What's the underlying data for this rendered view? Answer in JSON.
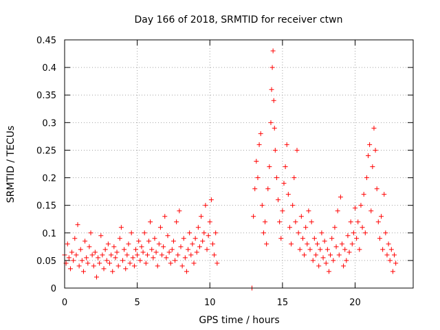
{
  "chart_data": {
    "type": "scatter",
    "title": "Day 166 of 2018, SRMTID for receiver ctwn",
    "xlabel": "GPS time / hours",
    "ylabel": "SRMTID / TECUs",
    "xlim": [
      0,
      24
    ],
    "ylim": [
      0,
      0.45
    ],
    "x_ticks": [
      0,
      5,
      10,
      15,
      20
    ],
    "x_tick_labels": [
      "0",
      "5",
      "10",
      "15",
      "20"
    ],
    "y_ticks": [
      0,
      0.05,
      0.1,
      0.15,
      0.2,
      0.25,
      0.3,
      0.35,
      0.4,
      0.45
    ],
    "y_tick_labels": [
      "0",
      "0.05",
      "0.1",
      "0.15",
      "0.2",
      "0.25",
      "0.3",
      "0.35",
      "0.4",
      "0.45"
    ],
    "grid": true,
    "marker": "plus",
    "color": "#ff0000",
    "series": [
      {
        "name": "SRMTID",
        "points": [
          [
            0.0,
            0.06
          ],
          [
            0.1,
            0.045
          ],
          [
            0.2,
            0.08
          ],
          [
            0.3,
            0.055
          ],
          [
            0.4,
            0.035
          ],
          [
            0.5,
            0.065
          ],
          [
            0.6,
            0.05
          ],
          [
            0.7,
            0.09
          ],
          [
            0.8,
            0.06
          ],
          [
            0.9,
            0.115
          ],
          [
            1.0,
            0.04
          ],
          [
            1.1,
            0.07
          ],
          [
            1.2,
            0.05
          ],
          [
            1.3,
            0.03
          ],
          [
            1.4,
            0.085
          ],
          [
            1.5,
            0.055
          ],
          [
            1.6,
            0.045
          ],
          [
            1.7,
            0.075
          ],
          [
            1.8,
            0.1
          ],
          [
            1.9,
            0.06
          ],
          [
            2.0,
            0.04
          ],
          [
            2.1,
            0.065
          ],
          [
            2.2,
            0.02
          ],
          [
            2.3,
            0.055
          ],
          [
            2.4,
            0.045
          ],
          [
            2.5,
            0.095
          ],
          [
            2.6,
            0.06
          ],
          [
            2.7,
            0.035
          ],
          [
            2.8,
            0.07
          ],
          [
            2.9,
            0.05
          ],
          [
            3.0,
            0.08
          ],
          [
            3.1,
            0.045
          ],
          [
            3.2,
            0.06
          ],
          [
            3.3,
            0.03
          ],
          [
            3.4,
            0.075
          ],
          [
            3.5,
            0.055
          ],
          [
            3.6,
            0.065
          ],
          [
            3.7,
            0.04
          ],
          [
            3.8,
            0.09
          ],
          [
            3.9,
            0.11
          ],
          [
            4.0,
            0.05
          ],
          [
            4.1,
            0.07
          ],
          [
            4.2,
            0.035
          ],
          [
            4.3,
            0.06
          ],
          [
            4.4,
            0.08
          ],
          [
            4.5,
            0.045
          ],
          [
            4.6,
            0.1
          ],
          [
            4.7,
            0.055
          ],
          [
            4.8,
            0.04
          ],
          [
            4.9,
            0.07
          ],
          [
            5.0,
            0.06
          ],
          [
            5.1,
            0.085
          ],
          [
            5.2,
            0.05
          ],
          [
            5.3,
            0.075
          ],
          [
            5.4,
            0.065
          ],
          [
            5.5,
            0.1
          ],
          [
            5.6,
            0.045
          ],
          [
            5.7,
            0.06
          ],
          [
            5.8,
            0.085
          ],
          [
            5.9,
            0.12
          ],
          [
            6.0,
            0.07
          ],
          [
            6.1,
            0.055
          ],
          [
            6.2,
            0.09
          ],
          [
            6.3,
            0.065
          ],
          [
            6.4,
            0.04
          ],
          [
            6.5,
            0.08
          ],
          [
            6.6,
            0.11
          ],
          [
            6.7,
            0.06
          ],
          [
            6.8,
            0.075
          ],
          [
            6.9,
            0.13
          ],
          [
            7.0,
            0.055
          ],
          [
            7.1,
            0.095
          ],
          [
            7.2,
            0.065
          ],
          [
            7.3,
            0.045
          ],
          [
            7.4,
            0.07
          ],
          [
            7.5,
            0.085
          ],
          [
            7.6,
            0.05
          ],
          [
            7.7,
            0.12
          ],
          [
            7.8,
            0.06
          ],
          [
            7.9,
            0.14
          ],
          [
            8.0,
            0.075
          ],
          [
            8.1,
            0.04
          ],
          [
            8.2,
            0.09
          ],
          [
            8.3,
            0.055
          ],
          [
            8.4,
            0.03
          ],
          [
            8.5,
            0.07
          ],
          [
            8.6,
            0.1
          ],
          [
            8.7,
            0.06
          ],
          [
            8.8,
            0.08
          ],
          [
            8.9,
            0.045
          ],
          [
            9.0,
            0.09
          ],
          [
            9.1,
            0.065
          ],
          [
            9.2,
            0.11
          ],
          [
            9.3,
            0.075
          ],
          [
            9.4,
            0.13
          ],
          [
            9.5,
            0.085
          ],
          [
            9.6,
            0.1
          ],
          [
            9.7,
            0.15
          ],
          [
            9.8,
            0.07
          ],
          [
            9.9,
            0.095
          ],
          [
            10.0,
            0.12
          ],
          [
            10.1,
            0.16
          ],
          [
            10.2,
            0.08
          ],
          [
            10.3,
            0.06
          ],
          [
            10.4,
            0.1
          ],
          [
            10.5,
            0.045
          ],
          [
            12.9,
            0.0
          ],
          [
            13.0,
            0.13
          ],
          [
            13.1,
            0.18
          ],
          [
            13.2,
            0.23
          ],
          [
            13.3,
            0.2
          ],
          [
            13.4,
            0.26
          ],
          [
            13.5,
            0.28
          ],
          [
            13.6,
            0.15
          ],
          [
            13.7,
            0.1
          ],
          [
            13.8,
            0.12
          ],
          [
            13.9,
            0.08
          ],
          [
            14.0,
            0.18
          ],
          [
            14.1,
            0.22
          ],
          [
            14.2,
            0.3
          ],
          [
            14.25,
            0.36
          ],
          [
            14.3,
            0.4
          ],
          [
            14.35,
            0.43
          ],
          [
            14.4,
            0.34
          ],
          [
            14.45,
            0.29
          ],
          [
            14.5,
            0.25
          ],
          [
            14.6,
            0.2
          ],
          [
            14.7,
            0.16
          ],
          [
            14.8,
            0.12
          ],
          [
            14.9,
            0.09
          ],
          [
            15.0,
            0.14
          ],
          [
            15.1,
            0.19
          ],
          [
            15.2,
            0.22
          ],
          [
            15.3,
            0.26
          ],
          [
            15.4,
            0.17
          ],
          [
            15.5,
            0.11
          ],
          [
            15.6,
            0.08
          ],
          [
            15.7,
            0.15
          ],
          [
            15.8,
            0.2
          ],
          [
            15.9,
            0.12
          ],
          [
            16.0,
            0.25
          ],
          [
            16.1,
            0.1
          ],
          [
            16.2,
            0.07
          ],
          [
            16.3,
            0.13
          ],
          [
            16.4,
            0.09
          ],
          [
            16.5,
            0.06
          ],
          [
            16.6,
            0.11
          ],
          [
            16.7,
            0.08
          ],
          [
            16.8,
            0.14
          ],
          [
            16.9,
            0.07
          ],
          [
            17.0,
            0.12
          ],
          [
            17.1,
            0.05
          ],
          [
            17.2,
            0.09
          ],
          [
            17.3,
            0.06
          ],
          [
            17.4,
            0.08
          ],
          [
            17.5,
            0.04
          ],
          [
            17.6,
            0.07
          ],
          [
            17.7,
            0.1
          ],
          [
            17.8,
            0.055
          ],
          [
            17.9,
            0.085
          ],
          [
            18.0,
            0.045
          ],
          [
            18.1,
            0.07
          ],
          [
            18.2,
            0.03
          ],
          [
            18.3,
            0.06
          ],
          [
            18.4,
            0.09
          ],
          [
            18.5,
            0.05
          ],
          [
            18.6,
            0.11
          ],
          [
            18.7,
            0.075
          ],
          [
            18.8,
            0.14
          ],
          [
            18.9,
            0.06
          ],
          [
            19.0,
            0.165
          ],
          [
            19.1,
            0.08
          ],
          [
            19.2,
            0.04
          ],
          [
            19.3,
            0.07
          ],
          [
            19.4,
            0.05
          ],
          [
            19.5,
            0.095
          ],
          [
            19.6,
            0.065
          ],
          [
            19.7,
            0.12
          ],
          [
            19.8,
            0.08
          ],
          [
            19.9,
            0.1
          ],
          [
            20.0,
            0.145
          ],
          [
            20.1,
            0.09
          ],
          [
            20.2,
            0.12
          ],
          [
            20.3,
            0.07
          ],
          [
            20.4,
            0.15
          ],
          [
            20.5,
            0.11
          ],
          [
            20.6,
            0.17
          ],
          [
            20.7,
            0.1
          ],
          [
            20.8,
            0.2
          ],
          [
            20.9,
            0.24
          ],
          [
            21.0,
            0.26
          ],
          [
            21.1,
            0.14
          ],
          [
            21.2,
            0.22
          ],
          [
            21.3,
            0.29
          ],
          [
            21.4,
            0.25
          ],
          [
            21.5,
            0.18
          ],
          [
            21.6,
            0.12
          ],
          [
            21.7,
            0.09
          ],
          [
            21.8,
            0.13
          ],
          [
            21.9,
            0.07
          ],
          [
            22.0,
            0.17
          ],
          [
            22.1,
            0.1
          ],
          [
            22.2,
            0.06
          ],
          [
            22.3,
            0.08
          ],
          [
            22.4,
            0.05
          ],
          [
            22.5,
            0.07
          ],
          [
            22.6,
            0.03
          ],
          [
            22.7,
            0.06
          ],
          [
            22.8,
            0.045
          ]
        ]
      }
    ]
  }
}
